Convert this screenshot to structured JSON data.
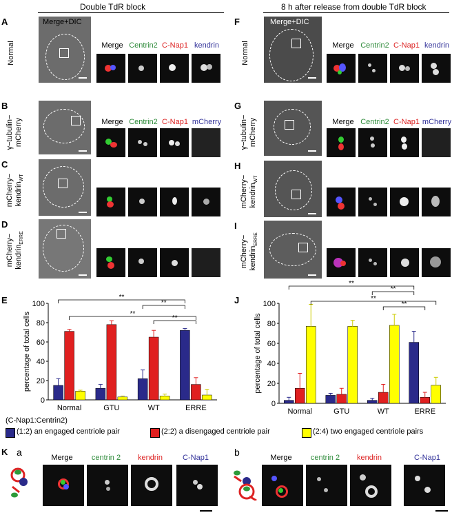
{
  "headers": {
    "left": "Double TdR block",
    "right": "8 h after release from double TdR block"
  },
  "panels": {
    "A": {
      "letter": "A",
      "row": "Normal",
      "main": "Merge+DIC"
    },
    "B": {
      "letter": "B",
      "row1": "γ−tubulin−",
      "row2": "mCherry"
    },
    "C": {
      "letter": "C",
      "row1": "mCherry−",
      "row2": "kendrin",
      "sub": "WT"
    },
    "D": {
      "letter": "D",
      "row1": "mCherry−",
      "row2": "kendrin",
      "sub": "ERRE"
    },
    "E": {
      "letter": "E"
    },
    "F": {
      "letter": "F",
      "row": "Normal",
      "main": "Merge+DIC"
    },
    "G": {
      "letter": "G",
      "row1": "γ−tubulin−",
      "row2": "mCherry"
    },
    "H": {
      "letter": "H",
      "row1": "mCherry−",
      "row2": "kendrin",
      "sub": "WT"
    },
    "I": {
      "letter": "I",
      "row1": "mCherry−",
      "row2": "kendrin",
      "sub": "ERRE"
    },
    "J": {
      "letter": "J"
    },
    "K": {
      "letter": "K",
      "a": "a",
      "b": "b"
    }
  },
  "columns": {
    "A": [
      "Merge",
      "Centrin2",
      "C-Nap1",
      "kendrin"
    ],
    "B": [
      "Merge",
      "Centrin2",
      "C-Nap1",
      "mCherry"
    ],
    "F": [
      "Merge",
      "Centrin2",
      "C-Nap1",
      "kendrin"
    ],
    "G": [
      "Merge",
      "Centrin2",
      "C-Nap1",
      "mCherry"
    ],
    "K": [
      "Merge",
      "centrin 2",
      "kendrin",
      "C-Nap1"
    ]
  },
  "legend": {
    "title": "(C-Nap1:Centrin2)",
    "items": [
      {
        "label": "(1:2) an engaged centriole pair",
        "color": "#2a2a8a"
      },
      {
        "label": "(2:2) a disengaged centriole pair",
        "color": "#e02020"
      },
      {
        "label": "(2:4) two engaged centriole pairs",
        "color": "#ffff00"
      }
    ]
  },
  "chart_data": [
    {
      "panel": "E",
      "type": "bar",
      "ylabel": "percentage of total cells",
      "ylim": [
        0,
        100
      ],
      "yticks": [
        0,
        20,
        40,
        60,
        80,
        100
      ],
      "categories": [
        "Normal",
        "GTU",
        "WT",
        "ERRE"
      ],
      "series": [
        {
          "name": "(1:2) an engaged centriole pair",
          "color": "#2a2a8a",
          "values": [
            15,
            12,
            22,
            72
          ],
          "errors": [
            7,
            4,
            9,
            2
          ]
        },
        {
          "name": "(2:2) a disengaged centriole pair",
          "color": "#e02020",
          "values": [
            71,
            78,
            65,
            16
          ],
          "errors": [
            2,
            4,
            7,
            7
          ]
        },
        {
          "name": "(2:4) two engaged centriole pairs",
          "color": "#ffff00",
          "values": [
            9,
            3,
            4,
            5
          ],
          "errors": [
            1,
            1,
            2,
            6
          ]
        }
      ],
      "significance": [
        "**",
        "**",
        "**",
        "**"
      ]
    },
    {
      "panel": "J",
      "type": "bar",
      "ylabel": "percentage of total cells",
      "ylim": [
        0,
        100
      ],
      "yticks": [
        0,
        20,
        40,
        60,
        80,
        100
      ],
      "categories": [
        "Normal",
        "GTU",
        "WT",
        "ERRE"
      ],
      "series": [
        {
          "name": "(1:2) an engaged centriole pair",
          "color": "#2a2a8a",
          "values": [
            3,
            8,
            3,
            61
          ],
          "errors": [
            3,
            2,
            2,
            11
          ]
        },
        {
          "name": "(2:2) a disengaged centriole pair",
          "color": "#e02020",
          "values": [
            15,
            9,
            11,
            6
          ],
          "errors": [
            15,
            6,
            8,
            5
          ]
        },
        {
          "name": "(2:4) two engaged centriole pairs",
          "color": "#ffff00",
          "values": [
            77,
            77,
            78,
            18
          ],
          "errors": [
            22,
            6,
            11,
            8
          ]
        }
      ],
      "significance": [
        "**",
        "**",
        "**",
        "**"
      ]
    }
  ]
}
